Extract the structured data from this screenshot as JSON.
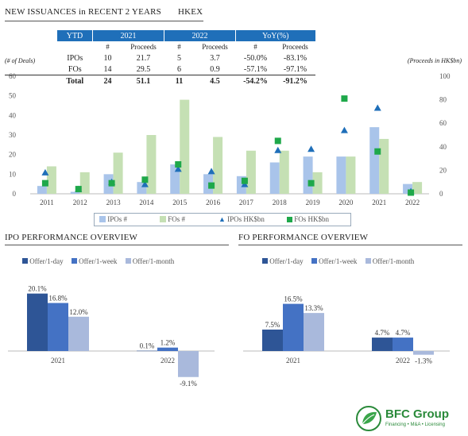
{
  "header": {
    "title": "NEW ISSUANCES in RECENT 2 YEARS",
    "ticker": "HKEX"
  },
  "stats_table": {
    "ytd_label": "YTD",
    "years": [
      "2021",
      "2022"
    ],
    "yoy_label": "YoY(%)",
    "subheaders": [
      "#",
      "Proceeds",
      "#",
      "Proceeds",
      "#",
      "Proceeds"
    ],
    "rows": [
      {
        "label": "IPOs",
        "values": [
          "10",
          "21.7",
          "5",
          "3.7",
          "-50.0%",
          "-83.1%"
        ]
      },
      {
        "label": "FOs",
        "values": [
          "14",
          "29.5",
          "6",
          "0.9",
          "-57.1%",
          "-97.1%"
        ]
      },
      {
        "label": "Total",
        "values": [
          "24",
          "51.1",
          "11",
          "4.5",
          "-54.2%",
          "-91.2%"
        ]
      }
    ]
  },
  "colors": {
    "ipo_bar": "#a9c4ea",
    "fo_bar": "#c5e0b4",
    "ipo_marker": "#1f6fb9",
    "fo_marker": "#1ea84a",
    "dark_blue": "#2e5596",
    "mid_blue": "#4472c4",
    "light_blue": "#a9b9dc",
    "table_blue": "#1f6fb9"
  },
  "chart_data": [
    {
      "type": "bar",
      "ylabel_left": "(# of Deals)",
      "ylabel_right": "(Proceeds in HK$bn)",
      "ylim_left": [
        0,
        60
      ],
      "ylim_right": [
        0,
        100
      ],
      "yticks_left": [
        "0",
        "10",
        "20",
        "30",
        "40",
        "50",
        "60"
      ],
      "yticks_right": [
        "0",
        "20",
        "40",
        "60",
        "80",
        "100"
      ],
      "categories": [
        "2011",
        "2012",
        "2013",
        "2014",
        "2015",
        "2016",
        "2017",
        "2018",
        "2019",
        "2020",
        "2021",
        "2022"
      ],
      "series": [
        {
          "name": "IPOs #",
          "kind": "bar",
          "axis": "left",
          "values": [
            4,
            1,
            10,
            6,
            15,
            10,
            9,
            16,
            19,
            19,
            34,
            5
          ]
        },
        {
          "name": "FOs #",
          "kind": "bar",
          "axis": "left",
          "values": [
            14,
            11,
            21,
            30,
            48,
            29,
            22,
            22,
            11,
            19,
            28,
            6
          ]
        },
        {
          "name": "IPOs HK$bn",
          "kind": "triangle",
          "axis": "right",
          "values": [
            18,
            4,
            10,
            8,
            21,
            19,
            8,
            37,
            38,
            54,
            73,
            2
          ]
        },
        {
          "name": "FOs HK$bn",
          "kind": "square",
          "axis": "right",
          "values": [
            9,
            4,
            9,
            12,
            25,
            7,
            11,
            45,
            9,
            81,
            36,
            1
          ]
        }
      ],
      "legend": "bottom"
    },
    {
      "type": "bar",
      "title": "IPO PERFORMANCE OVERVIEW",
      "categories": [
        "2021",
        "2022"
      ],
      "series": [
        {
          "name": "Offer/1-day",
          "values": [
            20.1,
            0.1
          ],
          "labels": [
            "20.1%",
            "0.1%"
          ]
        },
        {
          "name": "Offer/1-week",
          "values": [
            16.8,
            1.2
          ],
          "labels": [
            "16.8%",
            "1.2%"
          ]
        },
        {
          "name": "Offer/1-month",
          "values": [
            12.0,
            -9.1
          ],
          "labels": [
            "12.0%",
            "-9.1%"
          ]
        }
      ],
      "legend": "top-left"
    },
    {
      "type": "bar",
      "title": "FO PERFORMANCE OVERVIEW",
      "categories": [
        "2021",
        "2022"
      ],
      "series": [
        {
          "name": "Offer/1-day",
          "values": [
            7.5,
            4.7
          ],
          "labels": [
            "7.5%",
            "4.7%"
          ]
        },
        {
          "name": "Offer/1-week",
          "values": [
            16.5,
            4.7
          ],
          "labels": [
            "16.5%",
            "4.7%"
          ]
        },
        {
          "name": "Offer/1-month",
          "values": [
            13.3,
            -1.3
          ],
          "labels": [
            "13.3%",
            "-1.3%"
          ]
        }
      ],
      "legend": "top-left"
    }
  ],
  "branding": {
    "name": "BFC Group",
    "tagline": "Financing • M&A • Licensing"
  }
}
